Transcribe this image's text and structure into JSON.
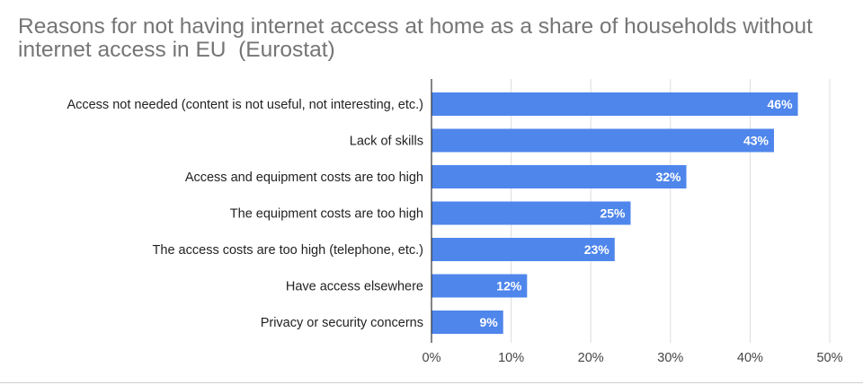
{
  "chart_data": {
    "type": "bar",
    "orientation": "horizontal",
    "title": "Reasons for not having internet access at home as a share of households without internet access in EU  (Eurostat)",
    "categories": [
      "Access not needed (content is not useful, not interesting, etc.)",
      "Lack of skills",
      "Access and equipment costs are too high",
      "The equipment costs are too high",
      "The access costs are too high (telephone, etc.)",
      "Have access elsewhere",
      "Privacy or security concerns"
    ],
    "values": [
      46,
      43,
      32,
      25,
      23,
      12,
      9
    ],
    "data_labels": [
      "46%",
      "43%",
      "32%",
      "25%",
      "23%",
      "12%",
      "9%"
    ],
    "xlim": [
      0,
      50
    ],
    "xticks": [
      0,
      10,
      20,
      30,
      40,
      50
    ],
    "xtick_labels": [
      "0%",
      "10%",
      "20%",
      "30%",
      "40%",
      "50%"
    ],
    "xlabel": "",
    "ylabel": "",
    "grid": "vertical",
    "legend": "none",
    "colors": {
      "bar": "#4f86ec",
      "grid": "#dddddd",
      "axis": "#333333",
      "title": "#757575"
    }
  }
}
